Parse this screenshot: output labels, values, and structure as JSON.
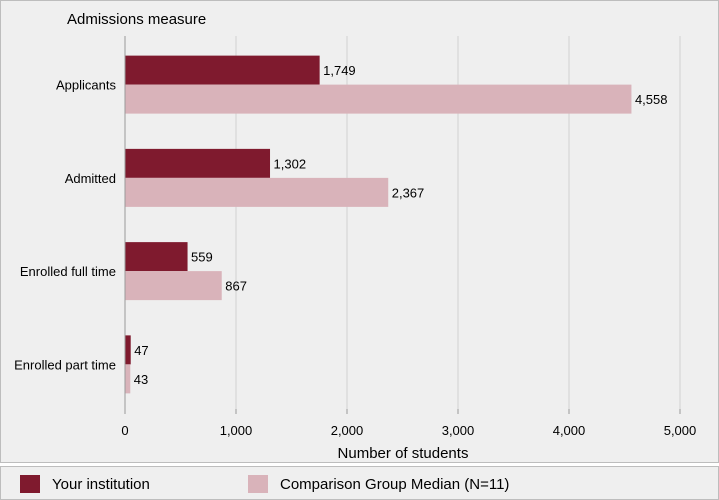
{
  "chart_data": {
    "type": "bar",
    "orientation": "horizontal",
    "y_axis_title": "Admissions measure",
    "xlabel": "Number of students",
    "categories": [
      "Applicants",
      "Admitted",
      "Enrolled full time",
      "Enrolled part time"
    ],
    "series": [
      {
        "name": "Your institution",
        "color": "#7f1a2e",
        "values": [
          1749,
          1302,
          559,
          47
        ],
        "labels": [
          "1,749",
          "1,302",
          "559",
          "47"
        ]
      },
      {
        "name": "Comparison Group Median (N=11)",
        "color": "#d9b3ba",
        "values": [
          4558,
          2367,
          867,
          43
        ],
        "labels": [
          "4,558",
          "2,367",
          "867",
          "43"
        ]
      }
    ],
    "xlim": [
      0,
      5000
    ],
    "xticks": [
      0,
      1000,
      2000,
      3000,
      4000,
      5000
    ],
    "xtick_labels": [
      "0",
      "1,000",
      "2,000",
      "3,000",
      "4,000",
      "5,000"
    ],
    "grid": "vertical",
    "legend_position": "bottom"
  }
}
